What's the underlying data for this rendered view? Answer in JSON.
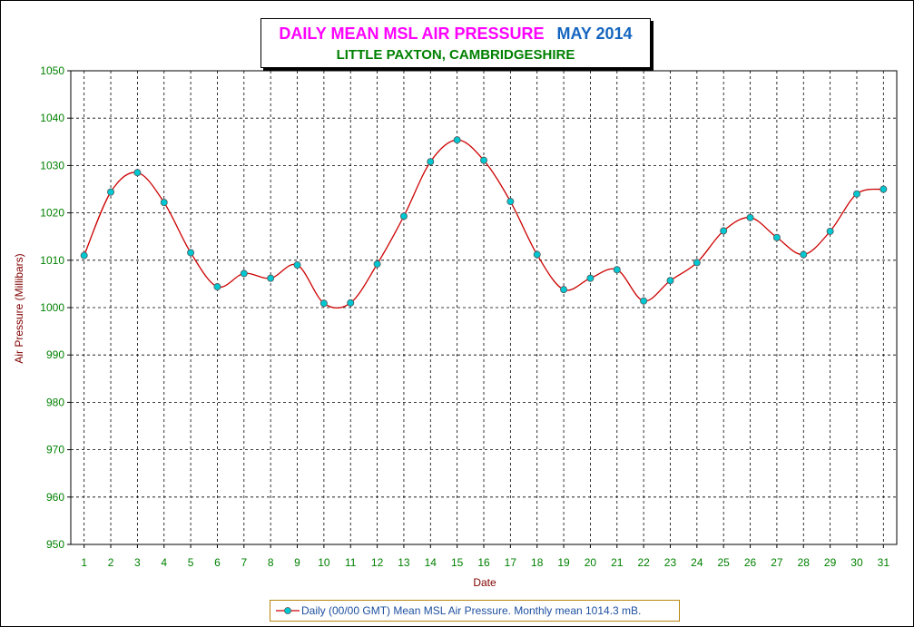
{
  "title": {
    "main": "DAILY MEAN MSL AIR PRESSURE",
    "month": "MAY 2014",
    "subtitle": "LITTLE PAXTON, CAMBRIDGESHIRE"
  },
  "legend": {
    "label": "Daily (00/00 GMT) Mean MSL Air Pressure. Monthly mean 1014.3 mB."
  },
  "colors": {
    "title_main": "#ff00ff",
    "title_month": "#1565c0",
    "subtitle": "#008000",
    "tick_labels": "#008000",
    "axis_label": "#800000",
    "line": "#cc0000",
    "marker_fill": "#00c8d2",
    "grid": "#000000"
  },
  "chart_data": {
    "type": "line",
    "xlabel": "Date",
    "ylabel": "Air Pressure (Millibars)",
    "ylim": [
      950,
      1050
    ],
    "yticks": [
      950,
      960,
      970,
      980,
      990,
      1000,
      1010,
      1020,
      1030,
      1040,
      1050
    ],
    "grid": true,
    "legend_position": "bottom",
    "categories": [
      "1",
      "2",
      "3",
      "4",
      "5",
      "6",
      "7",
      "8",
      "9",
      "10",
      "11",
      "12",
      "13",
      "14",
      "15",
      "16",
      "17",
      "18",
      "19",
      "20",
      "21",
      "22",
      "23",
      "24",
      "25",
      "26",
      "27",
      "28",
      "29",
      "30",
      "31"
    ],
    "series": [
      {
        "name": "Daily (00/00 GMT) Mean MSL Air Pressure. Monthly mean 1014.3 mB.",
        "values": [
          1011.0,
          1024.4,
          1028.5,
          1022.2,
          1011.6,
          1004.4,
          1007.2,
          1006.2,
          1009.0,
          1000.9,
          1001.0,
          1009.2,
          1019.3,
          1030.8,
          1035.4,
          1031.1,
          1022.4,
          1011.2,
          1003.8,
          1006.2,
          1008.0,
          1001.4,
          1005.7,
          1009.5,
          1016.2,
          1019.0,
          1014.8,
          1011.2,
          1016.1,
          1024.0,
          1025.0
        ]
      }
    ]
  }
}
